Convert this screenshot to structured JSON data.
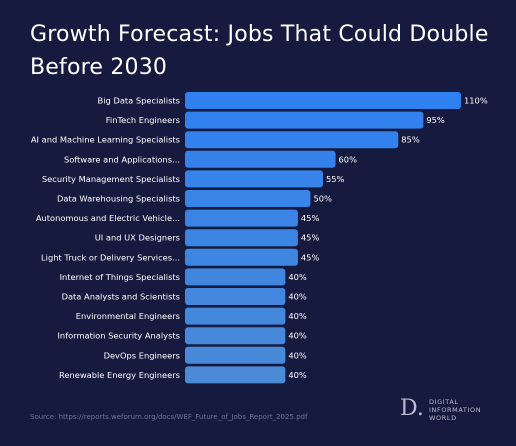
{
  "title_line1": "Growth Forecast: Jobs That Could Double",
  "title_line2": "Before 2030",
  "source": "Source: https://reports.weforum.org/docs/WEF_Future_of_Jobs_Report_2025.pdf",
  "logo": {
    "mark": "D.",
    "line1": "DIGITAL",
    "line2": "INFORMATION",
    "line3": "WORLD"
  },
  "colors": {
    "background": "#161a3f",
    "bar_top": "#2f80f0",
    "bar_bottom": "#4a8ad6",
    "text": "#ffffff"
  },
  "chart_data": {
    "type": "bar",
    "orientation": "horizontal",
    "unit": "%",
    "categories": [
      "Big Data Specialists",
      "FinTech Engineers",
      "AI and Machine Learning Specialists",
      "Software and Applications...",
      "Security Management Specialists",
      "Data Warehousing Specialists",
      "Autonomous and Electric Vehicle...",
      "UI and UX Designers",
      "Light Truck or Delivery Services...",
      "Internet of Things Specialists",
      "Data Analysts and Scientists",
      "Environmental Engineers",
      "Information Security Analysts",
      "DevOps Engineers",
      "Renewable Energy Engineers"
    ],
    "values": [
      110,
      95,
      85,
      60,
      55,
      50,
      45,
      45,
      45,
      40,
      40,
      40,
      40,
      40,
      40
    ],
    "labels": [
      "110%",
      "95%",
      "85%",
      "60%",
      "55%",
      "50%",
      "45%",
      "45%",
      "45%",
      "40%",
      "40%",
      "40%",
      "40%",
      "40%",
      "40%"
    ],
    "xlim": [
      0,
      110
    ],
    "grid": false,
    "legend": "none"
  }
}
